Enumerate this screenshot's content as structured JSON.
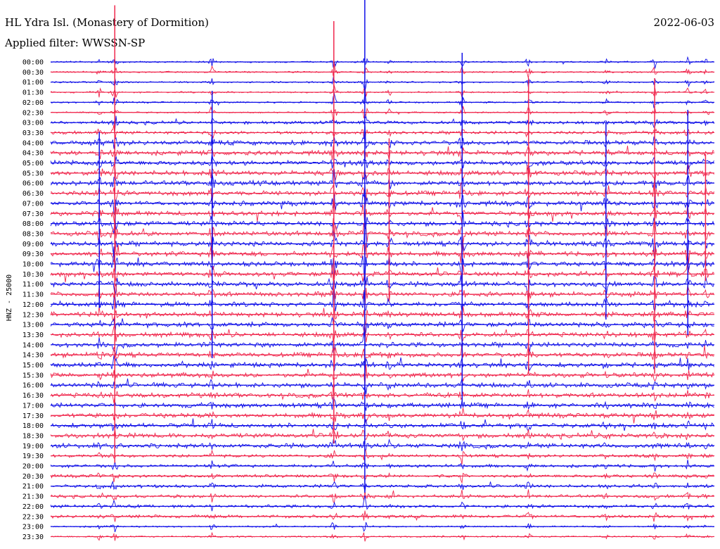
{
  "header": {
    "station": "HL Ydra Isl. (Monastery of Dormition)",
    "filter": "Applied filter: WWSSN-SP",
    "date": "2022-06-03"
  },
  "chart_data": {
    "type": "helicorder",
    "title": "HL Ydra Isl. (Monastery of Dormition)",
    "subtitle": "Applied filter: WWSSN-SP",
    "date": "2022-06-03",
    "ylabel": "HNZ - 25000",
    "trace_colors": [
      "#1010e8",
      "#f0284e"
    ],
    "rows": [
      "00:00",
      "00:30",
      "01:00",
      "01:30",
      "02:00",
      "02:30",
      "03:00",
      "03:30",
      "04:00",
      "04:30",
      "05:00",
      "05:30",
      "06:00",
      "06:30",
      "07:00",
      "07:30",
      "08:00",
      "08:30",
      "09:00",
      "09:30",
      "10:00",
      "10:30",
      "11:00",
      "11:30",
      "12:00",
      "12:30",
      "13:00",
      "13:30",
      "14:00",
      "14:30",
      "15:00",
      "15:30",
      "16:00",
      "16:30",
      "17:00",
      "17:30",
      "18:00",
      "18:30",
      "19:00",
      "19:30",
      "20:00",
      "20:30",
      "21:00",
      "21:30",
      "22:00",
      "22:30",
      "23:00",
      "23:30"
    ],
    "noise_level": [
      1,
      1,
      1,
      1,
      1,
      1,
      2,
      2,
      3,
      3,
      3,
      3,
      3,
      3,
      3,
      3,
      3,
      3,
      3,
      3,
      3,
      3,
      3,
      3,
      3,
      3,
      3,
      3,
      3,
      3,
      3,
      3,
      3,
      3,
      3,
      3,
      3,
      3,
      3,
      2,
      2,
      2,
      2,
      2,
      2,
      2,
      1,
      1
    ],
    "x_unit": "minutes",
    "events": [
      {
        "minute": 2.2,
        "amplitude": 250
      },
      {
        "minute": 2.9,
        "amplitude": 650
      },
      {
        "minute": 7.3,
        "amplitude": 380
      },
      {
        "minute": 12.8,
        "amplitude": 600
      },
      {
        "minute": 14.2,
        "amplitude": 700
      },
      {
        "minute": 15.3,
        "amplitude": 230
      },
      {
        "minute": 18.6,
        "amplitude": 500
      },
      {
        "minute": 21.6,
        "amplitude": 420
      },
      {
        "minute": 25.1,
        "amplitude": 280
      },
      {
        "minute": 27.3,
        "amplitude": 420
      },
      {
        "minute": 28.8,
        "amplitude": 320
      },
      {
        "minute": 29.6,
        "amplitude": 180
      }
    ]
  }
}
